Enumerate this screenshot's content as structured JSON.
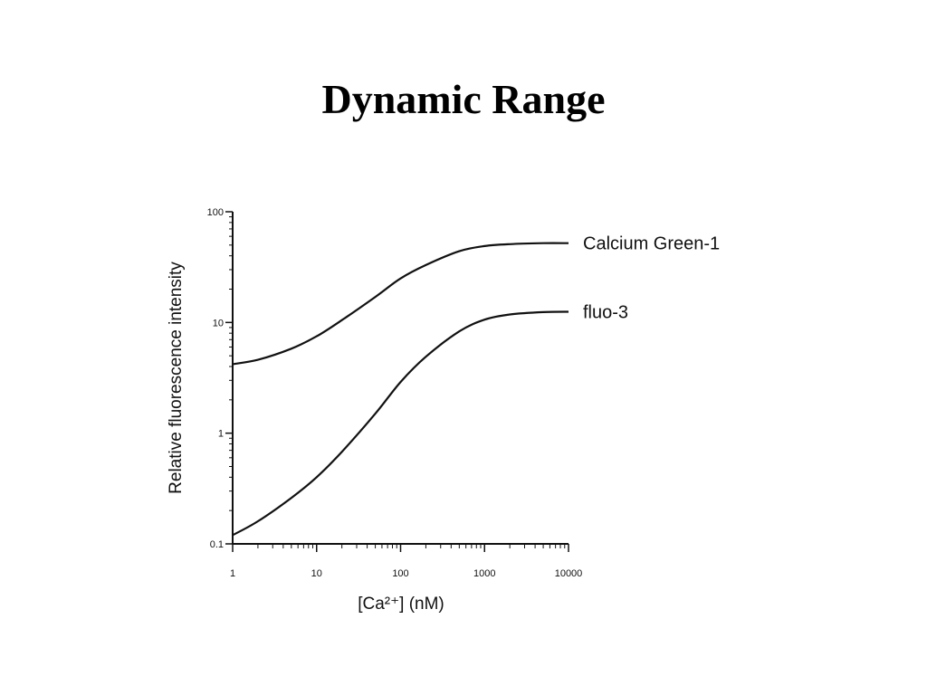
{
  "slide": {
    "title": "Dynamic Range"
  },
  "chart_data": {
    "type": "line",
    "title": "",
    "xlabel": "[Ca²⁺] (nM)",
    "ylabel": "Relative fluorescence intensity",
    "xscale": "log",
    "yscale": "log",
    "xlim": [
      1,
      10000
    ],
    "ylim": [
      0.1,
      100
    ],
    "x_ticks": [
      {
        "value": 1,
        "label": "1"
      },
      {
        "value": 10,
        "label": "10"
      },
      {
        "value": 100,
        "label": "100"
      },
      {
        "value": 1000,
        "label": "1000"
      },
      {
        "value": 10000,
        "label": "10000"
      }
    ],
    "y_ticks": [
      {
        "value": 0.1,
        "label": "0.1"
      },
      {
        "value": 1,
        "label": "1"
      },
      {
        "value": 10,
        "label": "10"
      },
      {
        "value": 100,
        "label": "100"
      }
    ],
    "grid": false,
    "legend": "labels at right end of lines",
    "series": [
      {
        "name": "Calcium Green-1",
        "x": [
          1,
          2,
          5,
          10,
          20,
          50,
          100,
          200,
          500,
          1000,
          2000,
          5000,
          10000
        ],
        "y": [
          4.2,
          4.6,
          5.8,
          7.5,
          10.5,
          17,
          25,
          33,
          44,
          49,
          51,
          52,
          52
        ]
      },
      {
        "name": "fluo-3",
        "x": [
          1,
          2,
          5,
          10,
          20,
          50,
          100,
          200,
          500,
          1000,
          2000,
          5000,
          10000
        ],
        "y": [
          0.12,
          0.16,
          0.26,
          0.4,
          0.68,
          1.5,
          2.9,
          4.9,
          8.3,
          10.6,
          11.8,
          12.4,
          12.5
        ]
      }
    ],
    "line_color": "#111111"
  }
}
